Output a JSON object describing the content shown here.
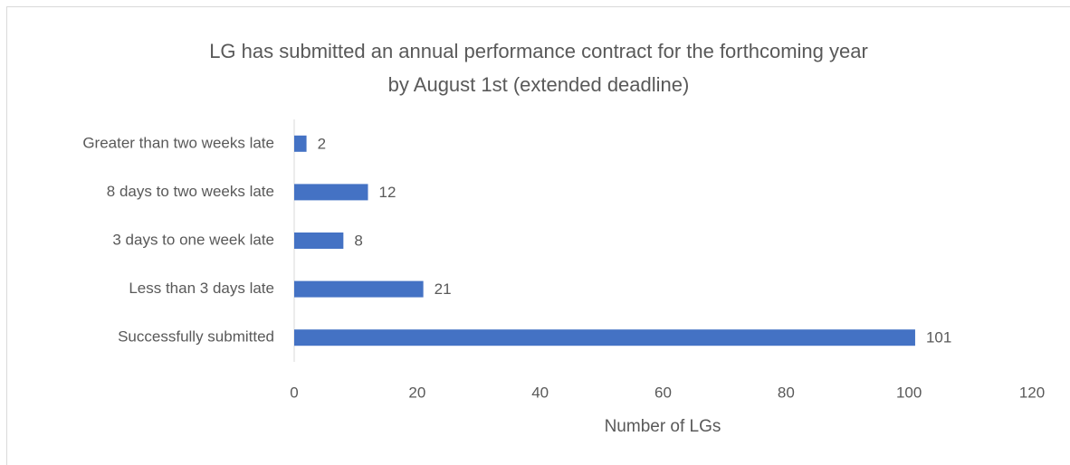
{
  "chart_data": {
    "type": "bar",
    "orientation": "horizontal",
    "title": [
      "LG has submitted an annual performance contract for the forthcoming year",
      "by August 1st (extended deadline)"
    ],
    "categories": [
      "Greater than two weeks late",
      "8 days to two weeks late",
      "3 days to one week late",
      "Less than 3 days late",
      "Successfully submitted"
    ],
    "values": [
      2,
      12,
      8,
      21,
      101
    ],
    "color": "#4472c4",
    "xlabel": "Number of LGs",
    "xlim": [
      0,
      120
    ],
    "xticks": [
      0,
      20,
      40,
      60,
      80,
      100,
      120
    ],
    "grid": false
  }
}
